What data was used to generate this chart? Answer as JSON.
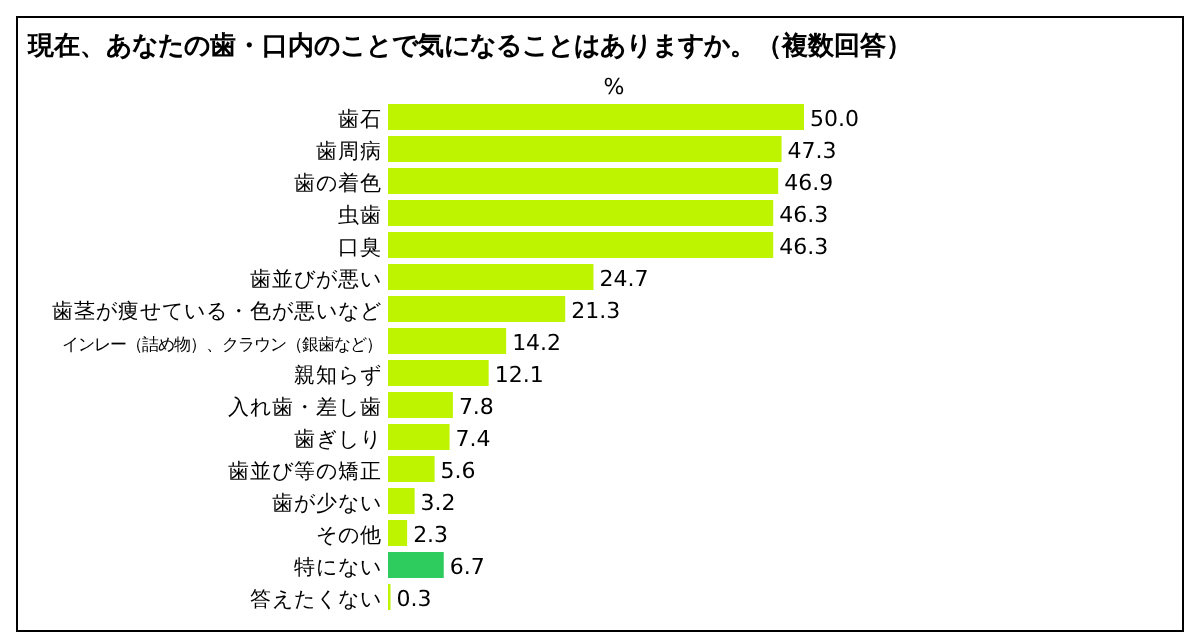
{
  "chart_data": {
    "type": "bar",
    "orientation": "horizontal",
    "title": "現在、あなたの歯・口内のことで気になることはありますか。（複数回答）",
    "xlabel": "%",
    "categories": [
      "歯石",
      "歯周病",
      "歯の着色",
      "虫歯",
      "口臭",
      "歯並びが悪い",
      "歯茎が痩せている・色が悪いなど",
      "インレー（詰め物）、クラウン（銀歯など）",
      "親知らず",
      "入れ歯・差し歯",
      "歯ぎしり",
      "歯並び等の矯正",
      "歯が少ない",
      "その他",
      "特にない",
      "答えたくない"
    ],
    "values": [
      50.0,
      47.3,
      46.9,
      46.3,
      46.3,
      24.7,
      21.3,
      14.2,
      12.1,
      7.8,
      7.4,
      5.6,
      3.2,
      2.3,
      6.7,
      0.3
    ],
    "colors": [
      "#bff400",
      "#bff400",
      "#bff400",
      "#bff400",
      "#bff400",
      "#bff400",
      "#bff400",
      "#bff400",
      "#bff400",
      "#bff400",
      "#bff400",
      "#bff400",
      "#bff400",
      "#bff400",
      "#2ecb5e",
      "#bff400"
    ],
    "value_labels": [
      "50.0",
      "47.3",
      "46.9",
      "46.3",
      "46.3",
      "24.7",
      "21.3",
      "14.2",
      "12.1",
      "7.8",
      "7.4",
      "5.6",
      "3.2",
      "2.3",
      "6.7",
      "0.3"
    ],
    "tick_labels": "y"
  }
}
